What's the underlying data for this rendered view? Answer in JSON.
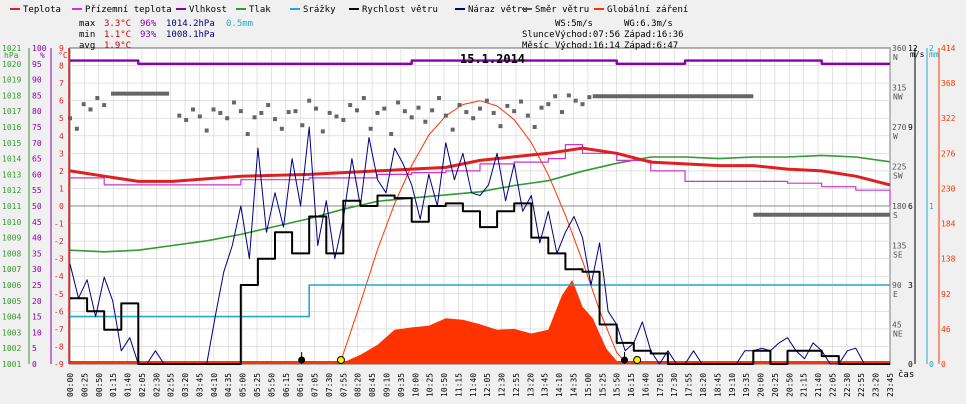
{
  "chart_data": {
    "type": "line",
    "title": "15.1.2014",
    "legend": [
      {
        "label": "Teplota",
        "color": "#e02020"
      },
      {
        "label": "Přízemní teplota",
        "color": "#cc33cc"
      },
      {
        "label": "Vlhkost",
        "color": "#8800aa"
      },
      {
        "label": "Tlak",
        "color": "#339933"
      },
      {
        "label": "Srážky",
        "color": "#22aacc"
      },
      {
        "label": "Rychlost větru",
        "color": "#000000"
      },
      {
        "label": "Náraz větru",
        "color": "#000080"
      },
      {
        "label": "Směr větru",
        "color": "#555555"
      },
      {
        "label": "Globální záření",
        "color": "#ff3300"
      }
    ],
    "stats": {
      "max": {
        "label": "max",
        "temp": "3.3°C",
        "hum": "96%",
        "press": "1014.2hPa",
        "rain": "0.5mm"
      },
      "min": {
        "label": "min",
        "temp": "1.1°C",
        "hum": "93%",
        "press": "1008.1hPa"
      },
      "avg": {
        "label": "avg",
        "temp": "1.9°C"
      }
    },
    "info": {
      "ws": "WS:5m/s",
      "wg": "WG:6.3m/s",
      "sun_label": "Slunce",
      "sun_rise": "Východ:07:56",
      "sun_set": "Západ:16:36",
      "moon_label": "Měsíc",
      "moon_rise": "Východ:16:14",
      "moon_set": "Západ:6:47"
    },
    "axes": {
      "left_pressure": {
        "unit": "hPa",
        "min": 1001,
        "max": 1021,
        "step": 1,
        "color": "#339933"
      },
      "left_humidity": {
        "unit": "%",
        "min": 0,
        "max": 100,
        "step": 5,
        "color": "#8800aa"
      },
      "left_temp": {
        "unit": "°C",
        "min": -9,
        "max": 9,
        "step": 1,
        "color": "#e02020"
      },
      "right_dir": {
        "ticks": [
          {
            "v": 360,
            "d": "N"
          },
          {
            "v": 315,
            "d": "NW"
          },
          {
            "v": 270,
            "d": "W"
          },
          {
            "v": 225,
            "d": "SW"
          },
          {
            "v": 180,
            "d": "S"
          },
          {
            "v": 135,
            "d": "SE"
          },
          {
            "v": 90,
            "d": "E"
          },
          {
            "v": 45,
            "d": "NE"
          }
        ],
        "color": "#555555"
      },
      "right_wind": {
        "unit": "m/s",
        "ticks": [
          0,
          3,
          6,
          9,
          12
        ],
        "color": "#000000"
      },
      "right_rain": {
        "unit": "mm",
        "ticks": [
          0,
          1,
          2
        ],
        "color": "#22aacc"
      },
      "right_rad": {
        "ticks": [
          0,
          46,
          92,
          138,
          184,
          230,
          276,
          322,
          368,
          414
        ],
        "color": "#ff3300"
      },
      "x_unit": "čas"
    },
    "x_labels": [
      "00:00",
      "00:25",
      "00:50",
      "01:15",
      "01:40",
      "02:05",
      "02:30",
      "02:55",
      "03:20",
      "03:45",
      "04:10",
      "04:35",
      "05:00",
      "05:25",
      "05:50",
      "06:15",
      "06:40",
      "07:05",
      "07:30",
      "07:55",
      "08:20",
      "08:45",
      "09:10",
      "09:35",
      "10:00",
      "10:25",
      "10:50",
      "11:15",
      "11:40",
      "12:05",
      "12:30",
      "12:55",
      "13:20",
      "13:45",
      "14:10",
      "14:35",
      "15:00",
      "15:25",
      "15:50",
      "16:15",
      "16:40",
      "17:05",
      "17:30",
      "17:55",
      "18:20",
      "18:45",
      "19:10",
      "19:35",
      "20:00",
      "20:25",
      "20:50",
      "21:15",
      "21:40",
      "22:05",
      "22:30",
      "22:55",
      "23:20",
      "23:45"
    ],
    "series": {
      "humidity": {
        "t": [
          0,
          1,
          2,
          4,
          6,
          8,
          10,
          12,
          14,
          16,
          18,
          20,
          22,
          24
        ],
        "v": [
          96,
          96,
          95,
          95,
          95,
          95,
          96,
          96,
          96,
          95,
          96,
          96,
          95,
          95
        ]
      },
      "temperature": {
        "t": [
          0,
          1,
          2,
          3,
          5,
          7,
          9,
          10,
          11,
          12,
          13,
          14,
          15,
          16,
          17,
          19,
          20,
          21,
          22,
          23,
          24
        ],
        "v": [
          2.0,
          1.7,
          1.4,
          1.4,
          1.7,
          1.8,
          2.0,
          2.1,
          2.2,
          2.6,
          2.8,
          3.0,
          3.3,
          3.0,
          2.5,
          2.3,
          2.3,
          2.1,
          2.0,
          1.7,
          1.2
        ]
      },
      "ground_temp": {
        "t": [
          0,
          1,
          2,
          3,
          5,
          7,
          9,
          10,
          11,
          12,
          13,
          14,
          14.5,
          15,
          16,
          17,
          18,
          19,
          20,
          21,
          22,
          23,
          24
        ],
        "v": [
          1.6,
          1.2,
          1.2,
          1.2,
          1.5,
          1.6,
          1.8,
          1.9,
          2.0,
          2.4,
          2.5,
          2.7,
          3.5,
          3.0,
          2.6,
          2.0,
          1.4,
          1.4,
          1.4,
          1.3,
          1.1,
          0.9,
          0.0
        ]
      },
      "pressure": {
        "t": [
          0,
          1,
          2,
          3,
          4,
          5,
          6,
          7,
          8,
          9,
          10,
          11,
          12,
          13,
          14,
          15,
          16,
          17,
          18,
          19,
          20,
          21,
          22,
          23,
          24
        ],
        "v": [
          1008.2,
          1008.1,
          1008.2,
          1008.5,
          1008.8,
          1009.2,
          1009.7,
          1010.2,
          1010.8,
          1011.3,
          1011.5,
          1011.7,
          1011.9,
          1012.3,
          1012.6,
          1013.2,
          1013.7,
          1014.1,
          1014.1,
          1014.0,
          1014.1,
          1014.1,
          1014.2,
          1014.1,
          1013.8
        ]
      },
      "rain": {
        "t": [
          0,
          1,
          2,
          3,
          4,
          5,
          6,
          7,
          8,
          9,
          10,
          11,
          12,
          13,
          14,
          15,
          16,
          17,
          18,
          19,
          20,
          21,
          22,
          23,
          24
        ],
        "v": [
          0.3,
          0.3,
          0.3,
          0.3,
          0.3,
          0.3,
          0.3,
          0.5,
          0.5,
          0.5,
          0.5,
          0.5,
          0.5,
          0.5,
          0.5,
          0.5,
          0.5,
          0.5,
          0.5,
          0.5,
          0.5,
          0.5,
          0.5,
          0.5,
          0.5
        ]
      },
      "wind_speed": {
        "t": [
          0,
          0.5,
          1,
          1.5,
          2,
          2.5,
          3,
          3.5,
          4,
          4.5,
          5,
          5.5,
          6,
          6.5,
          7,
          7.5,
          8,
          8.5,
          9,
          9.5,
          10,
          10.5,
          11,
          11.5,
          12,
          12.5,
          13,
          13.5,
          14,
          14.5,
          15,
          15.5,
          16,
          16.5,
          17,
          17.5,
          18,
          18.5,
          19,
          19.5,
          20,
          20.5,
          21,
          21.5,
          22,
          22.5,
          23,
          23.5,
          24
        ],
        "v": [
          2.5,
          2.0,
          1.3,
          2.3,
          0,
          0,
          0,
          0,
          0,
          0,
          3.0,
          4.0,
          5.0,
          4.2,
          5.6,
          4.2,
          6.2,
          6.0,
          6.4,
          6.3,
          5.4,
          6.0,
          6.1,
          5.8,
          5.2,
          5.8,
          6.1,
          4.8,
          4.2,
          3.6,
          3.5,
          1.5,
          0.8,
          0.5,
          0.4,
          0,
          0,
          0,
          0,
          0,
          0.5,
          0,
          0.5,
          0.5,
          0.3,
          0,
          0,
          0,
          0
        ]
      },
      "wind_gust": {
        "t": [
          0,
          0.25,
          0.5,
          0.75,
          1,
          1.25,
          1.5,
          1.75,
          2,
          2.25,
          2.5,
          2.75,
          3,
          3.25,
          3.5,
          3.75,
          4,
          4.25,
          4.5,
          4.75,
          5,
          5.25,
          5.5,
          5.75,
          6,
          6.25,
          6.5,
          6.75,
          7,
          7.25,
          7.5,
          7.75,
          8,
          8.25,
          8.5,
          8.75,
          9,
          9.25,
          9.5,
          9.75,
          10,
          10.25,
          10.5,
          10.75,
          11,
          11.25,
          11.5,
          11.75,
          12,
          12.25,
          12.5,
          12.75,
          13,
          13.25,
          13.5,
          13.75,
          14,
          14.25,
          14.5,
          14.75,
          15,
          15.25,
          15.5,
          15.75,
          16,
          16.25,
          16.5,
          16.75,
          17,
          17.25,
          17.5,
          17.75,
          18,
          18.25,
          18.5,
          18.75,
          19,
          19.25,
          19.5,
          19.75,
          20,
          20.25,
          20.5,
          20.75,
          21,
          21.25,
          21.5,
          21.75,
          22,
          22.25,
          22.5,
          22.75,
          23,
          23.25,
          23.5,
          23.75,
          24
        ],
        "v": [
          3.8,
          2.5,
          3.2,
          1.8,
          3.3,
          2.4,
          0.5,
          1.0,
          0,
          0,
          0.5,
          0,
          0,
          0,
          0,
          0,
          0,
          1.8,
          3.5,
          4.5,
          6.0,
          4.0,
          8.2,
          5.0,
          6.5,
          5.2,
          7.8,
          6.0,
          9.0,
          4.5,
          6.2,
          4.0,
          5.5,
          7.8,
          6.0,
          8.6,
          7.0,
          6.5,
          8.2,
          7.6,
          6.8,
          5.5,
          7.2,
          6.0,
          8.4,
          7.0,
          8.0,
          6.5,
          6.4,
          6.8,
          8.0,
          6.2,
          7.6,
          5.8,
          6.4,
          4.6,
          5.8,
          4.2,
          5.0,
          5.6,
          4.8,
          3.0,
          4.6,
          2.0,
          1.5,
          0.5,
          0.8,
          1.6,
          0.5,
          0,
          0.5,
          0,
          0,
          0.5,
          0,
          0,
          0,
          0,
          0,
          0.5,
          0.5,
          0.6,
          0.5,
          0.8,
          1.0,
          0.5,
          0.2,
          0.8,
          0.5,
          0,
          0,
          0.5,
          0.6,
          0,
          0,
          0,
          0,
          0,
          0
        ]
      },
      "wind_dir_dots": {
        "t": [
          0.0,
          0.2,
          0.4,
          0.6,
          0.8,
          1.0,
          3.2,
          3.4,
          3.6,
          3.8,
          4.0,
          4.2,
          4.4,
          4.6,
          4.8,
          5.0,
          5.2,
          5.4,
          5.6,
          5.8,
          6.0,
          6.2,
          6.4,
          6.6,
          6.8,
          7.0,
          7.2,
          7.4,
          7.6,
          7.8,
          8.0,
          8.2,
          8.4,
          8.6,
          8.8,
          9.0,
          9.2,
          9.4,
          9.6,
          9.8,
          10.0,
          10.2,
          10.4,
          10.6,
          10.8,
          11.0,
          11.2,
          11.4,
          11.6,
          11.8,
          12.0,
          12.2,
          12.4,
          12.6,
          12.8,
          13.0,
          13.2,
          13.4,
          13.6,
          13.8,
          14.0,
          14.2,
          14.4,
          14.6,
          14.8,
          15.0,
          15.2
        ],
        "v": [
          280,
          268,
          296,
          290,
          303,
          295,
          283,
          278,
          290,
          282,
          266,
          290,
          286,
          280,
          298,
          288,
          262,
          281,
          286,
          295,
          279,
          268,
          287,
          288,
          272,
          300,
          291,
          265,
          286,
          282,
          278,
          295,
          289,
          303,
          268,
          286,
          291,
          262,
          298,
          288,
          281,
          292,
          276,
          289,
          303,
          283,
          267,
          295,
          287,
          280,
          291,
          300,
          286,
          271,
          294,
          288,
          299,
          283,
          270,
          292,
          296,
          305,
          287,
          306,
          300,
          296,
          304
        ]
      },
      "wind_dir_lines": [
        {
          "t0": 1.2,
          "t1": 2.9,
          "v": 308
        },
        {
          "t0": 15.3,
          "t1": 20.0,
          "v": 305
        },
        {
          "t0": 20.0,
          "t1": 24.0,
          "v": 170
        }
      ],
      "radiation": {
        "t": [
          7.9,
          8.5,
          9.0,
          9.5,
          10.0,
          10.5,
          11.0,
          11.5,
          12.0,
          12.5,
          13.0,
          13.5,
          14.0,
          14.4,
          14.7,
          15.0,
          15.3,
          15.7,
          16.0,
          16.3
        ],
        "v": [
          0,
          12,
          25,
          45,
          48,
          50,
          60,
          58,
          52,
          45,
          46,
          40,
          45,
          90,
          110,
          75,
          60,
          20,
          4,
          0
        ]
      },
      "radiation_theory": {
        "t": [
          7.9,
          8.5,
          9.0,
          9.5,
          10.0,
          10.5,
          11.0,
          11.5,
          12.0,
          12.5,
          13.0,
          13.5,
          14.0,
          14.5,
          15.0,
          15.5,
          16.0,
          16.3
        ],
        "v": [
          0,
          80,
          150,
          210,
          260,
          300,
          325,
          340,
          345,
          338,
          320,
          290,
          248,
          195,
          135,
          70,
          15,
          0
        ]
      }
    },
    "markers": {
      "moon": [
        {
          "t": 6.78,
          "label": "moon-set"
        },
        {
          "t": 16.23,
          "label": "moon-rise"
        }
      ],
      "sun": [
        {
          "t": 7.93,
          "label": "sunrise"
        },
        {
          "t": 16.6,
          "label": "sunset"
        }
      ]
    },
    "grid": true,
    "colors": {
      "background": "#f0f0f0",
      "plot": "#ffffff",
      "grid": "#d0d0d0"
    }
  }
}
